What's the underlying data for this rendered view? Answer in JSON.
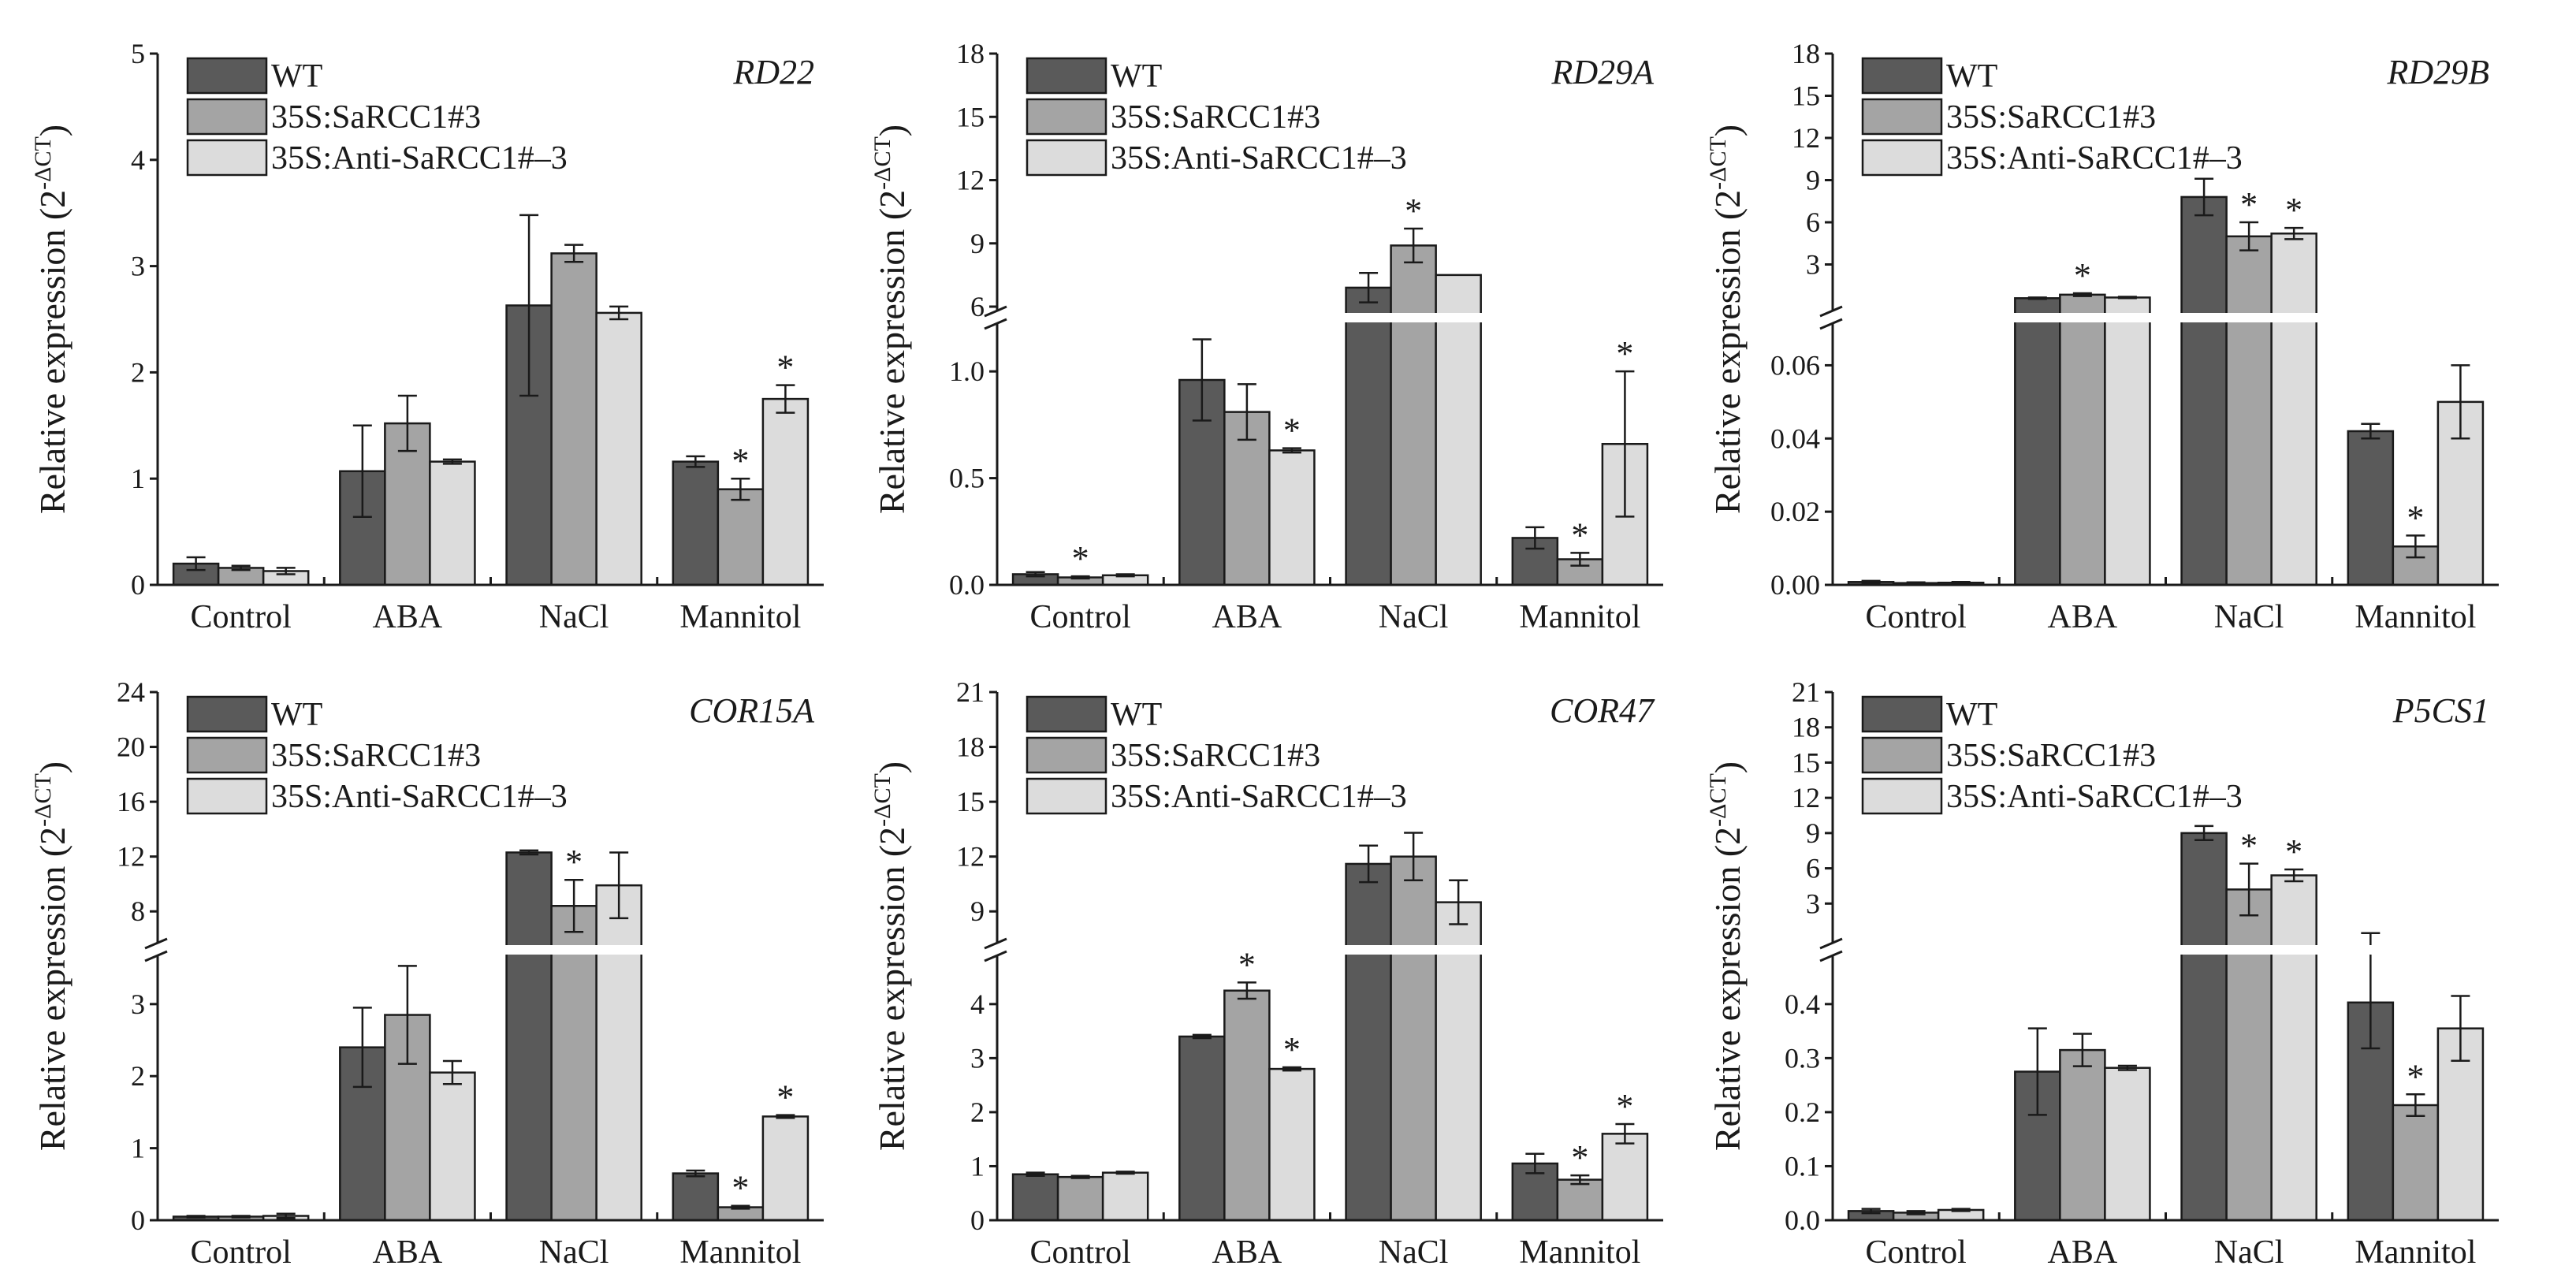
{
  "figure": {
    "series_names": [
      "WT",
      "35S:SaRCC1#3",
      "35S:Anti-SaRCC1#–3"
    ],
    "series_colors": [
      "#5a5a5a",
      "#a4a4a4",
      "#dcdcdc"
    ],
    "ylabel_main": "Relative expression (2",
    "ylabel_exp": "-ΔCT",
    "ylabel_close": ")"
  },
  "chart_data": [
    {
      "type": "bar",
      "title": "RD22",
      "categories": [
        "Control",
        "ABA",
        "NaCl",
        "Mannitol"
      ],
      "ylabel": "Relative expression (2^-ΔCT)",
      "axis_break": false,
      "ylim": [
        0,
        5
      ],
      "yticks": [
        0,
        1,
        2,
        3,
        4,
        5
      ],
      "series": [
        {
          "name": "WT",
          "values": [
            0.2,
            1.07,
            2.63,
            1.16
          ],
          "errors": [
            0.06,
            0.43,
            0.85,
            0.05
          ]
        },
        {
          "name": "35S:SaRCC1#3",
          "values": [
            0.16,
            1.52,
            3.12,
            0.9
          ],
          "errors": [
            0.02,
            0.26,
            0.08,
            0.1
          ]
        },
        {
          "name": "35S:Anti-SaRCC1#–3",
          "values": [
            0.13,
            1.16,
            2.56,
            1.75
          ],
          "errors": [
            0.03,
            0.02,
            0.06,
            0.13
          ]
        }
      ],
      "significance": [
        [
          1,
          3
        ],
        [
          2,
          3
        ]
      ]
    },
    {
      "type": "bar",
      "title": "RD29A",
      "categories": [
        "Control",
        "ABA",
        "NaCl",
        "Mannitol"
      ],
      "ylabel": "Relative expression (2^-ΔCT)",
      "axis_break": true,
      "lower": {
        "ylim": [
          0,
          1.2
        ],
        "yticks": [
          0.0,
          0.5,
          1.0
        ],
        "tick_labels": [
          "0.0",
          "0.5",
          "1.0"
        ]
      },
      "upper": {
        "ylim": [
          6,
          18
        ],
        "yticks": [
          6,
          9,
          12,
          15,
          18
        ],
        "tick_labels": [
          "6",
          "9",
          "12",
          "15",
          "18"
        ]
      },
      "series": [
        {
          "name": "WT",
          "values": [
            0.05,
            0.96,
            6.9,
            0.22
          ],
          "errors": [
            0.01,
            0.19,
            0.7,
            0.05
          ]
        },
        {
          "name": "35S:SaRCC1#3",
          "values": [
            0.035,
            0.81,
            8.9,
            0.12
          ],
          "errors": [
            0.005,
            0.13,
            0.8,
            0.03
          ]
        },
        {
          "name": "35S:Anti-SaRCC1#–3",
          "values": [
            0.045,
            0.63,
            7.5,
            0.66
          ],
          "errors": [
            0.005,
            0.01,
            0,
            0.34
          ]
        }
      ],
      "significance": [
        [
          1,
          0
        ],
        [
          2,
          1
        ],
        [
          1,
          2
        ],
        [
          1,
          3
        ],
        [
          2,
          3
        ]
      ]
    },
    {
      "type": "bar",
      "title": "RD29B",
      "categories": [
        "Control",
        "ABA",
        "NaCl",
        "Mannitol"
      ],
      "ylabel": "Relative expression (2^-ΔCT)",
      "axis_break": true,
      "lower": {
        "ylim": [
          0,
          0.07
        ],
        "yticks": [
          0.0,
          0.02,
          0.04,
          0.06
        ],
        "tick_labels": [
          "0.00",
          "0.02",
          "0.04",
          "0.06"
        ]
      },
      "upper": {
        "ylim": [
          0,
          18
        ],
        "yticks": [
          3,
          6,
          9,
          12,
          15,
          18
        ],
        "tick_labels": [
          "3",
          "6",
          "9",
          "12",
          "15",
          "18"
        ]
      },
      "series": [
        {
          "name": "WT",
          "values": [
            0.0008,
            0.6,
            7.8,
            0.042
          ],
          "errors": [
            0.0003,
            0.05,
            1.3,
            0.002
          ]
        },
        {
          "name": "35S:SaRCC1#3",
          "values": [
            0.0005,
            0.85,
            5.0,
            0.0105
          ],
          "errors": [
            0.0002,
            0.1,
            1.0,
            0.003
          ]
        },
        {
          "name": "35S:Anti-SaRCC1#–3",
          "values": [
            0.0006,
            0.65,
            5.2,
            0.05
          ],
          "errors": [
            0.0002,
            0.05,
            0.4,
            0.01
          ]
        }
      ],
      "significance": [
        [
          1,
          1
        ],
        [
          1,
          2
        ],
        [
          2,
          2
        ],
        [
          1,
          3
        ]
      ]
    },
    {
      "type": "bar",
      "title": "COR15A",
      "categories": [
        "Control",
        "ABA",
        "NaCl",
        "Mannitol"
      ],
      "ylabel": "Relative expression (2^-ΔCT)",
      "axis_break": true,
      "lower": {
        "ylim": [
          0,
          3.6
        ],
        "yticks": [
          0,
          1,
          2,
          3
        ],
        "tick_labels": [
          "0",
          "1",
          "2",
          "3"
        ]
      },
      "upper": {
        "ylim": [
          6,
          24
        ],
        "yticks": [
          8,
          12,
          16,
          20,
          24
        ],
        "tick_labels": [
          "8",
          "12",
          "16",
          "20",
          "24"
        ]
      },
      "series": [
        {
          "name": "WT",
          "values": [
            0.05,
            2.4,
            12.3,
            0.65
          ],
          "errors": [
            0.01,
            0.55,
            0.15,
            0.04
          ]
        },
        {
          "name": "35S:SaRCC1#3",
          "values": [
            0.05,
            2.85,
            8.4,
            0.18
          ],
          "errors": [
            0.01,
            0.68,
            1.9,
            0.02
          ]
        },
        {
          "name": "35S:Anti-SaRCC1#–3",
          "values": [
            0.06,
            2.05,
            9.9,
            1.44
          ],
          "errors": [
            0.03,
            0.16,
            2.4,
            0.02
          ]
        }
      ],
      "significance": [
        [
          1,
          2
        ],
        [
          1,
          3
        ],
        [
          2,
          3
        ]
      ]
    },
    {
      "type": "bar",
      "title": "COR47",
      "categories": [
        "Control",
        "ABA",
        "NaCl",
        "Mannitol"
      ],
      "ylabel": "Relative expression (2^-ΔCT)",
      "axis_break": true,
      "lower": {
        "ylim": [
          0,
          4.8
        ],
        "yticks": [
          0,
          1,
          2,
          3,
          4
        ],
        "tick_labels": [
          "0",
          "1",
          "2",
          "3",
          "4"
        ]
      },
      "upper": {
        "ylim": [
          7.5,
          21
        ],
        "yticks": [
          9,
          12,
          15,
          18,
          21
        ],
        "tick_labels": [
          "9",
          "12",
          "15",
          "18",
          "21"
        ]
      },
      "series": [
        {
          "name": "WT",
          "values": [
            0.85,
            3.4,
            11.6,
            1.05
          ],
          "errors": [
            0.03,
            0.03,
            1.0,
            0.18
          ]
        },
        {
          "name": "35S:SaRCC1#3",
          "values": [
            0.8,
            4.25,
            12.0,
            0.75
          ],
          "errors": [
            0.02,
            0.15,
            1.3,
            0.08
          ]
        },
        {
          "name": "35S:Anti-SaRCC1#–3",
          "values": [
            0.88,
            2.8,
            9.5,
            1.6
          ],
          "errors": [
            0.02,
            0.03,
            1.2,
            0.18
          ]
        }
      ],
      "significance": [
        [
          1,
          1
        ],
        [
          2,
          1
        ],
        [
          1,
          3
        ],
        [
          2,
          3
        ]
      ]
    },
    {
      "type": "bar",
      "title": "P5CS1",
      "categories": [
        "Control",
        "ABA",
        "NaCl",
        "Mannitol"
      ],
      "ylabel": "Relative expression (2^-ΔCT)",
      "axis_break": true,
      "lower": {
        "ylim": [
          0,
          0.48
        ],
        "yticks": [
          0.0,
          0.1,
          0.2,
          0.3,
          0.4
        ],
        "tick_labels": [
          "0.0",
          "0.1",
          "0.2",
          "0.3",
          "0.4"
        ]
      },
      "upper": {
        "ylim": [
          0,
          21
        ],
        "yticks": [
          3,
          6,
          9,
          12,
          15,
          18,
          21
        ],
        "tick_labels": [
          "3",
          "6",
          "9",
          "12",
          "15",
          "18",
          "21"
        ]
      },
      "series": [
        {
          "name": "WT",
          "values": [
            0.017,
            0.275,
            9.0,
            0.403
          ],
          "errors": [
            0.004,
            0.08,
            0.6,
            0.085
          ]
        },
        {
          "name": "35S:SaRCC1#3",
          "values": [
            0.014,
            0.315,
            4.2,
            0.213
          ],
          "errors": [
            0.003,
            0.03,
            2.2,
            0.02
          ]
        },
        {
          "name": "35S:Anti-SaRCC1#–3",
          "values": [
            0.019,
            0.282,
            5.4,
            0.355
          ],
          "errors": [
            0.002,
            0.004,
            0.5,
            0.06
          ]
        }
      ],
      "significance": [
        [
          1,
          2
        ],
        [
          2,
          2
        ],
        [
          1,
          3
        ]
      ]
    }
  ]
}
